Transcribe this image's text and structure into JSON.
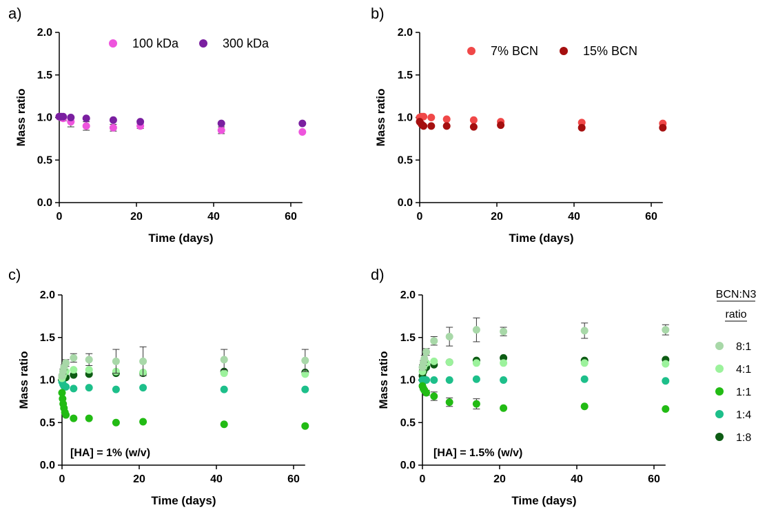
{
  "chart_data": [
    {
      "panel": "a)",
      "type": "scatter",
      "xlabel": "Time (days)",
      "ylabel": "Mass ratio",
      "xlim": [
        0,
        63
      ],
      "ylim": [
        0,
        2.0
      ],
      "xticks": [
        "0",
        "20",
        "40",
        "60"
      ],
      "yticks": [
        "0.0",
        "0.5",
        "1.0",
        "1.5",
        "2.0"
      ],
      "legend": "top",
      "grid": false,
      "annotation": "",
      "series": [
        {
          "name": "100 kDa",
          "color": "#ee55dd",
          "x": [
            0,
            0.5,
            1,
            3,
            7,
            14,
            21,
            42,
            63
          ],
          "y": [
            1.01,
            1.0,
            0.99,
            0.95,
            0.9,
            0.88,
            0.9,
            0.85,
            0.83
          ],
          "err": [
            0.02,
            0.02,
            0.03,
            0.06,
            0.05,
            0.04,
            0.03,
            0.04,
            0.0
          ]
        },
        {
          "name": "300 kDa",
          "color": "#7a1fa0",
          "x": [
            0,
            0.5,
            1,
            3,
            7,
            14,
            21,
            42,
            63
          ],
          "y": [
            1.01,
            1.01,
            1.01,
            1.0,
            0.99,
            0.97,
            0.95,
            0.93,
            0.93
          ],
          "err": [
            0,
            0,
            0,
            0,
            0,
            0,
            0,
            0,
            0
          ]
        }
      ]
    },
    {
      "panel": "b)",
      "type": "scatter",
      "xlabel": "Time (days)",
      "ylabel": "Mass ratio",
      "xlim": [
        0,
        63
      ],
      "ylim": [
        0,
        2.0
      ],
      "xticks": [
        "0",
        "20",
        "40",
        "60"
      ],
      "yticks": [
        "0.0",
        "0.5",
        "1.0",
        "1.5",
        "2.0"
      ],
      "legend": "top",
      "grid": false,
      "annotation": "",
      "series": [
        {
          "name": "7% BCN",
          "color": "#f04848",
          "x": [
            0,
            0.5,
            1,
            3,
            7,
            14,
            21,
            42,
            63
          ],
          "y": [
            1.0,
            1.01,
            1.01,
            1.0,
            0.98,
            0.97,
            0.95,
            0.94,
            0.93
          ],
          "err": [
            0,
            0,
            0,
            0,
            0,
            0,
            0,
            0,
            0
          ]
        },
        {
          "name": "15% BCN",
          "color": "#a50f0f",
          "x": [
            0,
            0.5,
            1,
            3,
            7,
            14,
            21,
            42,
            63
          ],
          "y": [
            0.95,
            0.92,
            0.9,
            0.9,
            0.9,
            0.89,
            0.91,
            0.88,
            0.88
          ],
          "err": [
            0,
            0,
            0,
            0,
            0,
            0,
            0,
            0,
            0
          ]
        }
      ]
    },
    {
      "panel": "c)",
      "type": "scatter",
      "xlabel": "Time (days)",
      "ylabel": "Mass ratio",
      "xlim": [
        0,
        63
      ],
      "ylim": [
        0,
        2.0
      ],
      "xticks": [
        "0",
        "20",
        "40",
        "60"
      ],
      "yticks": [
        "0.0",
        "0.5",
        "1.0",
        "1.5",
        "2.0"
      ],
      "legend": "shared",
      "grid": false,
      "annotation": "[HA] = 1% (w/v)",
      "series": [
        {
          "name": "1:8",
          "color": "#0d5c14",
          "x": [
            0,
            0.25,
            0.5,
            1,
            3,
            7,
            14,
            21,
            42,
            63
          ],
          "y": [
            1.0,
            1.01,
            1.02,
            1.03,
            1.06,
            1.07,
            1.08,
            1.08,
            1.1,
            1.09
          ],
          "err": [
            0,
            0,
            0,
            0,
            0,
            0,
            0,
            0,
            0,
            0
          ]
        },
        {
          "name": "1:4",
          "color": "#1dbf8a",
          "x": [
            0,
            0.25,
            0.5,
            1,
            3,
            7,
            14,
            21,
            42,
            63
          ],
          "y": [
            0.98,
            0.95,
            0.93,
            0.92,
            0.9,
            0.91,
            0.89,
            0.91,
            0.89,
            0.89
          ],
          "err": [
            0,
            0,
            0,
            0,
            0,
            0,
            0,
            0,
            0,
            0
          ]
        },
        {
          "name": "1:1",
          "color": "#22bb14",
          "x": [
            0,
            0.15,
            0.3,
            0.5,
            0.75,
            1,
            3,
            7,
            14,
            21,
            42,
            63
          ],
          "y": [
            0.85,
            0.78,
            0.72,
            0.67,
            0.62,
            0.59,
            0.55,
            0.55,
            0.5,
            0.51,
            0.48,
            0.46
          ],
          "err": [
            0,
            0,
            0,
            0,
            0,
            0,
            0,
            0,
            0,
            0,
            0,
            0
          ]
        },
        {
          "name": "4:1",
          "color": "#9cf29c",
          "x": [
            0,
            0.25,
            0.5,
            1,
            3,
            7,
            14,
            21,
            42,
            63
          ],
          "y": [
            1.02,
            1.05,
            1.08,
            1.1,
            1.12,
            1.12,
            1.1,
            1.09,
            1.08,
            1.07
          ],
          "err": [
            0,
            0,
            0,
            0,
            0,
            0,
            0,
            0,
            0,
            0
          ]
        },
        {
          "name": "8:1",
          "color": "#a8d8a8",
          "x": [
            0,
            0.25,
            0.5,
            1,
            3,
            7,
            14,
            21,
            42,
            63
          ],
          "y": [
            1.05,
            1.1,
            1.15,
            1.2,
            1.26,
            1.24,
            1.22,
            1.22,
            1.24,
            1.23
          ],
          "err": [
            0.02,
            0.03,
            0.03,
            0.04,
            0.05,
            0.07,
            0.14,
            0.17,
            0.12,
            0.13
          ]
        }
      ]
    },
    {
      "panel": "d)",
      "type": "scatter",
      "xlabel": "Time (days)",
      "ylabel": "Mass ratio",
      "xlim": [
        0,
        63
      ],
      "ylim": [
        0,
        2.0
      ],
      "xticks": [
        "0",
        "20",
        "40",
        "60"
      ],
      "yticks": [
        "0.0",
        "0.5",
        "1.0",
        "1.5",
        "2.0"
      ],
      "legend": "right",
      "grid": false,
      "annotation": "[HA] = 1.5% (w/v)",
      "series": [
        {
          "name": "1:8",
          "color": "#0d5c14",
          "x": [
            0,
            0.25,
            0.5,
            1,
            3,
            7,
            14,
            21,
            42,
            63
          ],
          "y": [
            1.05,
            1.1,
            1.13,
            1.15,
            1.18,
            1.21,
            1.23,
            1.26,
            1.23,
            1.24
          ],
          "err": [
            0,
            0,
            0,
            0,
            0,
            0,
            0,
            0,
            0,
            0
          ]
        },
        {
          "name": "1:4",
          "color": "#1dbf8a",
          "x": [
            0,
            0.25,
            0.5,
            1,
            3,
            7,
            14,
            21,
            42,
            63
          ],
          "y": [
            1.0,
            1.0,
            1.0,
            1.0,
            1.0,
            1.0,
            1.01,
            1.0,
            1.01,
            0.99
          ],
          "err": [
            0,
            0,
            0,
            0,
            0,
            0,
            0,
            0,
            0,
            0
          ]
        },
        {
          "name": "1:1",
          "color": "#22bb14",
          "x": [
            0,
            0.25,
            0.5,
            1,
            3,
            7,
            14,
            21,
            42,
            63
          ],
          "y": [
            0.93,
            0.9,
            0.88,
            0.85,
            0.81,
            0.74,
            0.72,
            0.67,
            0.69,
            0.66
          ],
          "err": [
            0.02,
            0.02,
            0.02,
            0.03,
            0.05,
            0.05,
            0.06,
            0.0,
            0.0,
            0.0
          ]
        },
        {
          "name": "4:1",
          "color": "#9cf29c",
          "x": [
            0,
            0.25,
            0.5,
            1,
            3,
            7,
            14,
            21,
            42,
            63
          ],
          "y": [
            1.1,
            1.15,
            1.18,
            1.2,
            1.22,
            1.21,
            1.2,
            1.2,
            1.2,
            1.19
          ],
          "err": [
            0,
            0,
            0,
            0,
            0,
            0,
            0,
            0,
            0,
            0
          ]
        },
        {
          "name": "8:1",
          "color": "#a8d8a8",
          "x": [
            0,
            0.25,
            0.5,
            1,
            3,
            7,
            14,
            21,
            42,
            63
          ],
          "y": [
            1.15,
            1.2,
            1.25,
            1.33,
            1.46,
            1.51,
            1.59,
            1.57,
            1.58,
            1.59
          ],
          "err": [
            0.03,
            0.03,
            0.04,
            0.04,
            0.05,
            0.11,
            0.14,
            0.05,
            0.09,
            0.06
          ]
        }
      ]
    }
  ],
  "shared_legend": {
    "title_line1": "BCN:N3",
    "title_line2": "ratio",
    "entries": [
      {
        "label": "8:1",
        "color": "#a8d8a8"
      },
      {
        "label": "4:1",
        "color": "#9cf29c"
      },
      {
        "label": "1:1",
        "color": "#22bb14"
      },
      {
        "label": "1:4",
        "color": "#1dbf8a"
      },
      {
        "label": "1:8",
        "color": "#0d5c14"
      }
    ]
  }
}
